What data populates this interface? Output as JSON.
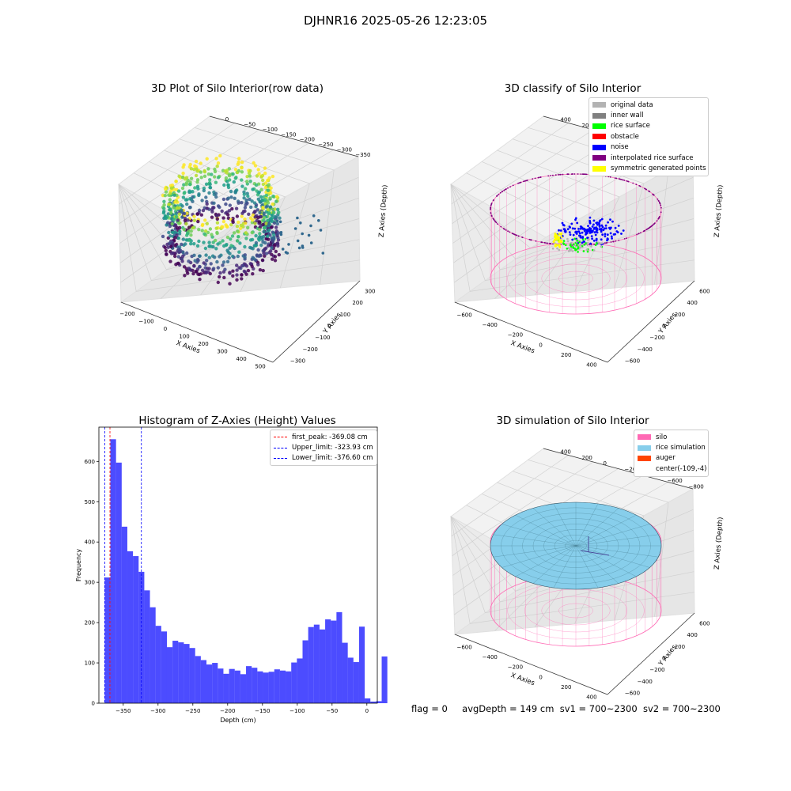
{
  "suptitle": "DJHNR16 2025-05-26 12:23:05",
  "panels": {
    "raw": {
      "title": "3D Plot of Silo Interior(row data)",
      "xlabel": "X Axies",
      "ylabel": "Y Axies",
      "zlabel": "Z Axies (Depth)",
      "xticks": [
        "−200",
        "−100",
        "0",
        "100",
        "200",
        "300",
        "400",
        "500"
      ],
      "yticks": [
        "−300",
        "−200",
        "−100",
        "0",
        "100",
        "200",
        "300"
      ],
      "zticks": [
        "0",
        "−50",
        "−100",
        "−150",
        "−200",
        "−250",
        "−300",
        "−350"
      ]
    },
    "classify": {
      "title": "3D classify of Silo Interior",
      "xlabel": "X Axies",
      "ylabel": "Y Axies",
      "zlabel": "Z Axies (Depth)",
      "xticks": [
        "−600",
        "−400",
        "−200",
        "0",
        "200",
        "400"
      ],
      "yticks": [
        "−600",
        "−400",
        "−200",
        "0",
        "200",
        "400",
        "600"
      ],
      "zticks": [
        "400",
        "200",
        "0",
        "−200",
        "−400",
        "−600",
        "−800"
      ],
      "legend": [
        {
          "label": "original data",
          "color": "#b3b3b3"
        },
        {
          "label": "inner wall",
          "color": "#808080"
        },
        {
          "label": "rice surface",
          "color": "#00ff00"
        },
        {
          "label": "obstacle",
          "color": "#ff0000"
        },
        {
          "label": "noise",
          "color": "#0000ff"
        },
        {
          "label": "interpolated rice surface",
          "color": "#800080"
        },
        {
          "label": "symmetric generated points",
          "color": "#ffff00"
        }
      ]
    },
    "simulation": {
      "title": "3D simulation of Silo Interior",
      "xlabel": "X Axies",
      "ylabel": "Y Axies",
      "zlabel": "Z Axies (Depth)",
      "xticks": [
        "−600",
        "−400",
        "−200",
        "0",
        "200",
        "400"
      ],
      "yticks": [
        "−600",
        "−400",
        "−200",
        "0",
        "200",
        "400",
        "600"
      ],
      "zticks": [
        "400",
        "200",
        "0",
        "−200",
        "−400",
        "−600",
        "−800"
      ],
      "legend": [
        {
          "label": "silo",
          "color": "#ff69b4"
        },
        {
          "label": "rice simulation",
          "color": "#87ceeb"
        },
        {
          "label": "auger",
          "color": "#ff4500"
        },
        {
          "label": "center(-109,-4)",
          "color": ""
        }
      ]
    }
  },
  "chart_data": {
    "type": "bar",
    "title": "Histogram of Z-Axies (Height) Values",
    "xlabel": "Depth (cm)",
    "ylabel": "Frequency",
    "xlim": [
      -385,
      15
    ],
    "ylim": [
      0,
      685
    ],
    "xticks": [
      -350,
      -300,
      -250,
      -200,
      -150,
      -100,
      -50,
      0
    ],
    "yticks": [
      0,
      100,
      200,
      300,
      400,
      500,
      600
    ],
    "bin_start": -376.6,
    "bin_width": 8.12,
    "values": [
      312,
      655,
      597,
      438,
      377,
      365,
      326,
      280,
      238,
      192,
      178,
      139,
      155,
      151,
      147,
      137,
      117,
      107,
      96,
      100,
      86,
      73,
      85,
      81,
      72,
      92,
      88,
      79,
      76,
      78,
      84,
      81,
      79,
      101,
      111,
      156,
      189,
      195,
      183,
      208,
      205,
      226,
      150,
      113,
      102,
      190,
      12,
      4,
      5,
      116
    ],
    "bar_color": "#0000ff",
    "vlines": [
      {
        "label": "first_peak: -369.08 cm",
        "x": -369.08,
        "color": "#ff0000"
      },
      {
        "label": "Upper_limit: -323.93 cm",
        "x": -323.93,
        "color": "#0000ff"
      },
      {
        "label": "Lower_limit: -376.60 cm",
        "x": -376.6,
        "color": "#0000ff"
      }
    ],
    "legend_position": "upper right"
  },
  "status": {
    "flag": "flag = 0",
    "avg": "avgDepth = 149 cm",
    "sv1": "sv1 = 700~2300",
    "sv2": "sv2 = 700~2300"
  }
}
